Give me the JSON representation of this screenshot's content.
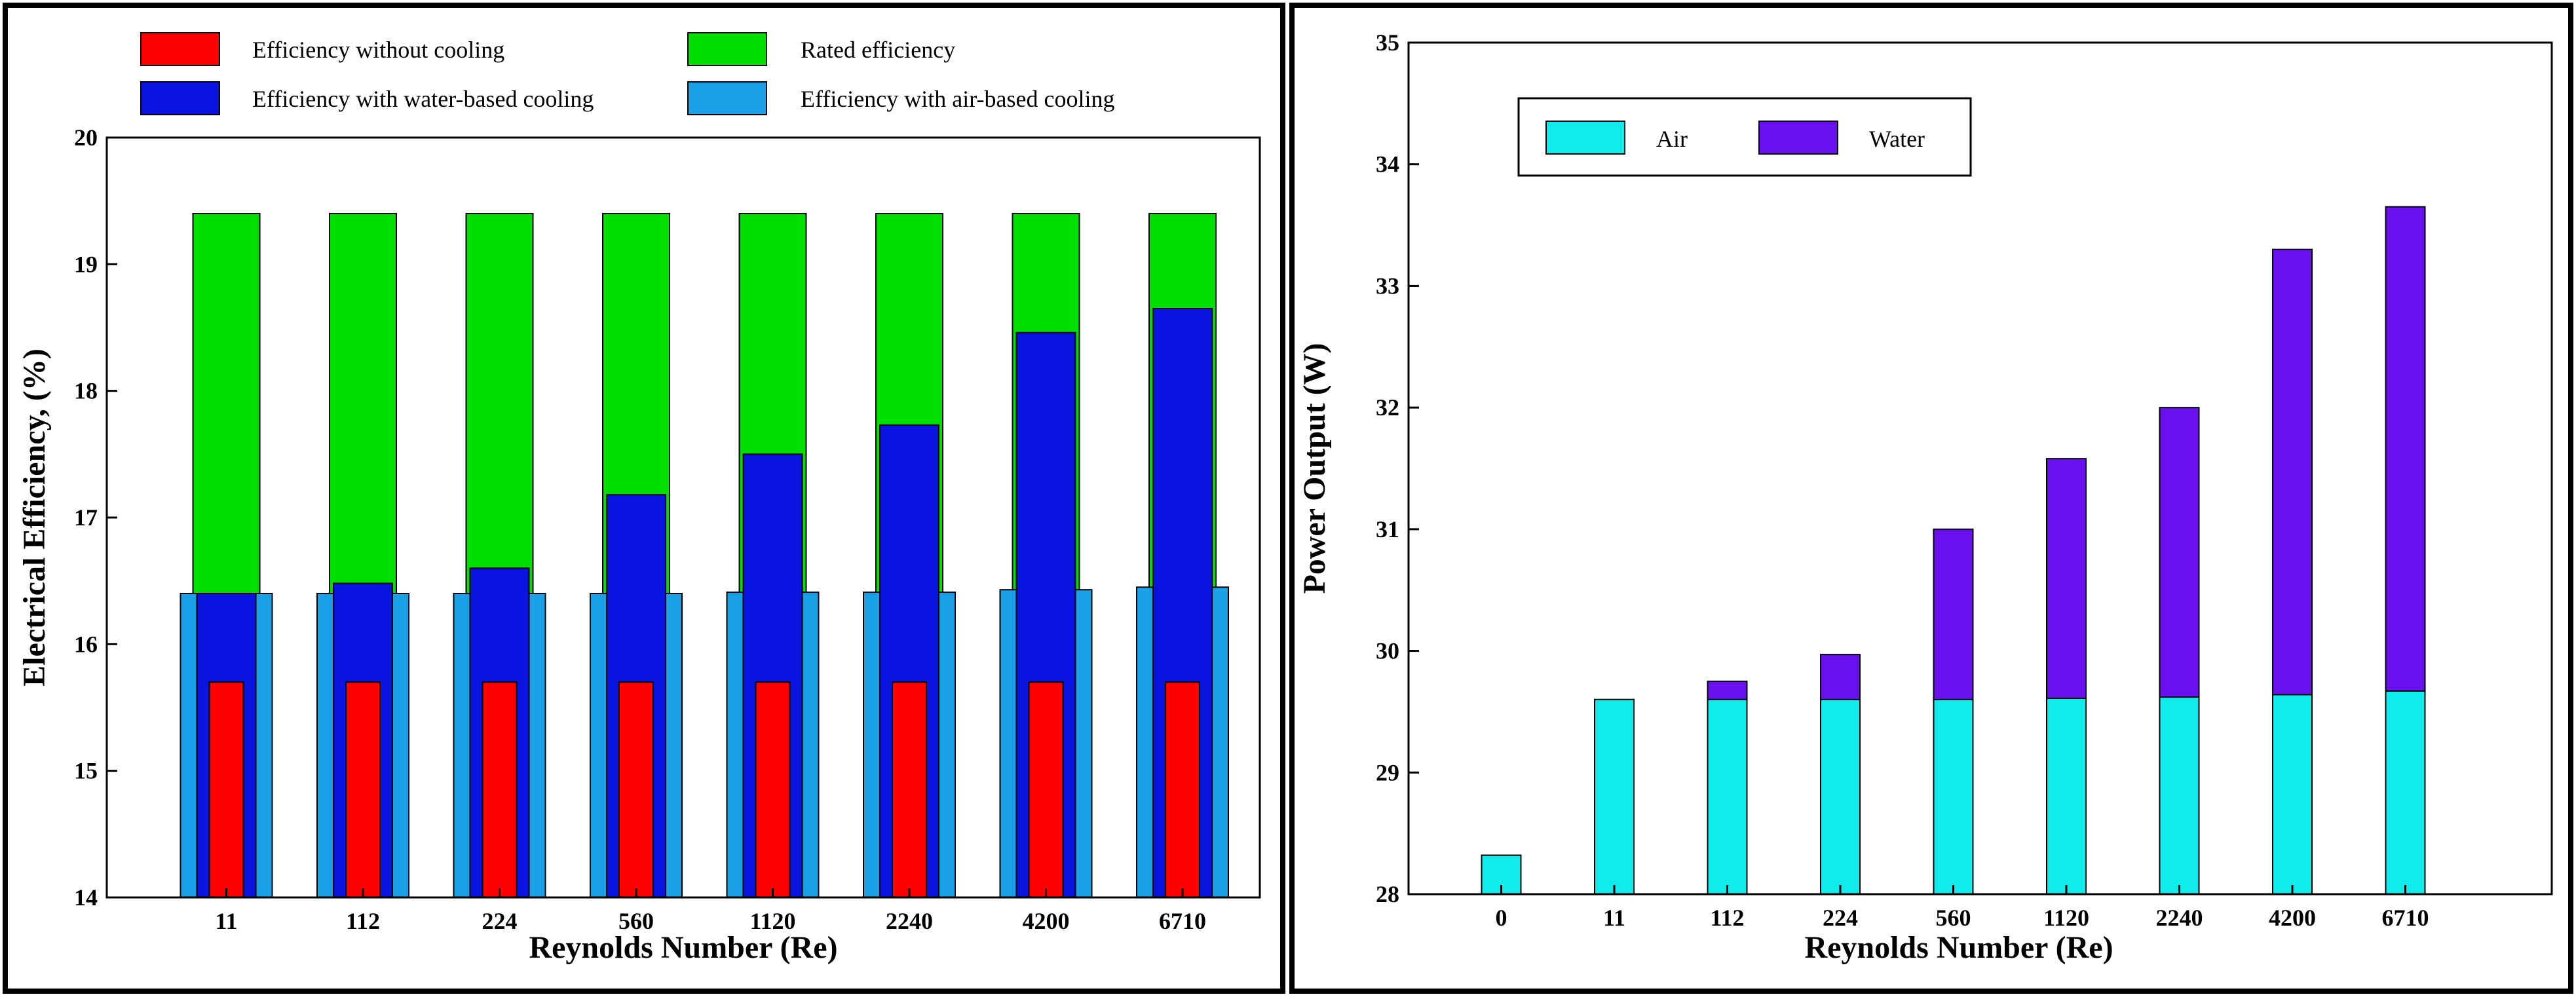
{
  "chart_data": [
    {
      "type": "bar",
      "title": "",
      "xlabel": "Reynolds Number (Re)",
      "ylabel": "Electrical Efficiency, (%)",
      "ylim": [
        14,
        20
      ],
      "yticks": [
        "14",
        "15",
        "16",
        "17",
        "18",
        "19",
        "20"
      ],
      "categories": [
        "11",
        "112",
        "224",
        "560",
        "1120",
        "2240",
        "4200",
        "6710"
      ],
      "grid": false,
      "legend_position": "top",
      "series": [
        {
          "name": "Rated efficiency",
          "color": "#00e000",
          "values": [
            19.4,
            19.4,
            19.4,
            19.4,
            19.4,
            19.4,
            19.4,
            19.4
          ]
        },
        {
          "name": "Efficiency with air-based cooling",
          "color": "#1aa0e6",
          "values": [
            16.4,
            16.4,
            16.4,
            16.4,
            16.41,
            16.41,
            16.43,
            16.45
          ]
        },
        {
          "name": "Efficiency with water-based cooling",
          "color": "#0a14e0",
          "values": [
            16.4,
            16.48,
            16.6,
            17.18,
            17.5,
            17.73,
            18.46,
            18.65
          ]
        },
        {
          "name": "Efficiency without cooling",
          "color": "#ff0000",
          "values": [
            15.7,
            15.7,
            15.7,
            15.7,
            15.7,
            15.7,
            15.7,
            15.7
          ]
        }
      ]
    },
    {
      "type": "bar",
      "title": "",
      "xlabel": "Reynolds Number (Re)",
      "ylabel": "Power Output (W)",
      "ylim": [
        28,
        35
      ],
      "yticks": [
        "28",
        "29",
        "30",
        "31",
        "32",
        "33",
        "34",
        "35"
      ],
      "categories": [
        "0",
        "11",
        "112",
        "224",
        "560",
        "1120",
        "2240",
        "4200",
        "6710"
      ],
      "grid": false,
      "legend_position": "top-left",
      "series": [
        {
          "name": "Water",
          "color": "#6a10f0",
          "values": [
            28.32,
            29.6,
            29.75,
            29.97,
            31.0,
            31.58,
            32.0,
            33.3,
            33.65
          ]
        },
        {
          "name": "Air",
          "color": "#10ecec",
          "values": [
            28.32,
            29.6,
            29.6,
            29.6,
            29.6,
            29.61,
            29.62,
            29.64,
            29.67
          ]
        }
      ]
    }
  ]
}
